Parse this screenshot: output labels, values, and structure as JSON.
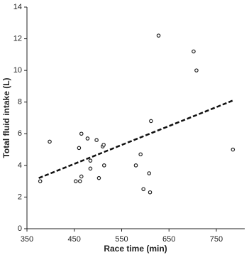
{
  "chart_data": {
    "type": "scatter",
    "x_label": "Race time (min)",
    "y_label": "Total fluid intake (L)",
    "xlim": [
      350,
      810
    ],
    "xticks": [
      350,
      450,
      550,
      650,
      750
    ],
    "ylim": [
      0,
      14
    ],
    "yticks": [
      0,
      2,
      4,
      6,
      8,
      10,
      12,
      14
    ],
    "series": [
      {
        "color": "#222222",
        "x": [
          378,
          398,
          453,
          462,
          460,
          465,
          465,
          478,
          484,
          484,
          497,
          502,
          510,
          512,
          513,
          580,
          590,
          596,
          608,
          610,
          612,
          628,
          702,
          708,
          785
        ],
        "values": [
          3.0,
          5.5,
          3.0,
          3.0,
          5.1,
          3.3,
          6.0,
          5.7,
          3.8,
          4.3,
          5.6,
          3.2,
          5.2,
          5.3,
          4.0,
          4.0,
          4.7,
          2.5,
          3.5,
          2.3,
          6.8,
          12.2,
          11.2,
          10.0,
          5.0
        ]
      }
    ],
    "trendline": {
      "x": [
        375,
        785
      ],
      "values": [
        3.2,
        8.1
      ],
      "color": "#111111"
    }
  }
}
